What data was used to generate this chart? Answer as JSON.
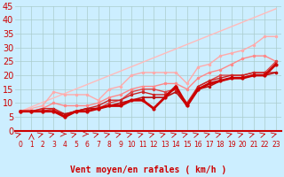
{
  "xlabel": "Vent moyen/en rafales ( km/h )",
  "bg_color": "#cceeff",
  "grid_color": "#aacccc",
  "xlim": [
    -0.5,
    23.5
  ],
  "ylim": [
    0,
    45
  ],
  "yticks": [
    0,
    5,
    10,
    15,
    20,
    25,
    30,
    35,
    40,
    45
  ],
  "xticks": [
    0,
    1,
    2,
    3,
    4,
    5,
    6,
    7,
    8,
    9,
    10,
    11,
    12,
    13,
    14,
    15,
    16,
    17,
    18,
    19,
    20,
    21,
    22,
    23
  ],
  "series": [
    {
      "x": [
        0,
        23
      ],
      "y": [
        7,
        44
      ],
      "color": "#ffbbbb",
      "lw": 1.0,
      "marker": null,
      "ms": 0
    },
    {
      "x": [
        0,
        1,
        2,
        3,
        4,
        5,
        6,
        7,
        8,
        9,
        10,
        11,
        12,
        13,
        14,
        15,
        16,
        17,
        18,
        19,
        20,
        21,
        22,
        23
      ],
      "y": [
        7,
        8,
        9,
        14,
        13,
        13,
        13,
        11,
        15,
        16,
        20,
        21,
        21,
        21,
        21,
        17,
        23,
        24,
        27,
        28,
        29,
        31,
        34,
        34
      ],
      "color": "#ffaaaa",
      "lw": 1.0,
      "marker": "o",
      "ms": 2.5
    },
    {
      "x": [
        0,
        1,
        2,
        3,
        4,
        5,
        6,
        7,
        8,
        9,
        10,
        11,
        12,
        13,
        14,
        15,
        16,
        17,
        18,
        19,
        20,
        21,
        22,
        23
      ],
      "y": [
        7,
        7,
        8,
        10,
        9,
        9,
        9,
        10,
        12,
        13,
        15,
        16,
        16,
        17,
        17,
        15,
        19,
        21,
        22,
        24,
        26,
        27,
        27,
        25
      ],
      "color": "#ff8888",
      "lw": 1.0,
      "marker": "o",
      "ms": 2.5
    },
    {
      "x": [
        0,
        1,
        2,
        3,
        4,
        5,
        6,
        7,
        8,
        9,
        10,
        11,
        12,
        13,
        14,
        15,
        16,
        17,
        18,
        19,
        20,
        21,
        22,
        23
      ],
      "y": [
        7,
        7,
        7,
        8,
        5,
        7,
        8,
        8,
        10,
        11,
        14,
        15,
        15,
        14,
        15,
        9,
        16,
        18,
        20,
        20,
        20,
        21,
        21,
        25
      ],
      "color": "#dd4444",
      "lw": 1.0,
      "marker": "o",
      "ms": 2.5
    },
    {
      "x": [
        0,
        1,
        2,
        3,
        4,
        5,
        6,
        7,
        8,
        9,
        10,
        11,
        12,
        13,
        14,
        15,
        16,
        17,
        18,
        19,
        20,
        21,
        22,
        23
      ],
      "y": [
        7,
        7,
        8,
        8,
        6,
        7,
        8,
        9,
        11,
        11,
        13,
        14,
        13,
        13,
        15,
        10,
        16,
        18,
        19,
        20,
        20,
        21,
        21,
        21
      ],
      "color": "#cc2222",
      "lw": 1.0,
      "marker": "o",
      "ms": 2.5
    },
    {
      "x": [
        0,
        1,
        2,
        3,
        4,
        5,
        6,
        7,
        8,
        9,
        10,
        11,
        12,
        13,
        14,
        15,
        16,
        17,
        18,
        19,
        20,
        21,
        22,
        23
      ],
      "y": [
        7,
        7,
        7,
        7,
        6,
        7,
        8,
        8,
        9,
        10,
        11,
        12,
        12,
        12,
        14,
        9,
        15,
        16,
        18,
        19,
        19,
        20,
        20,
        21
      ],
      "color": "#bb1111",
      "lw": 1.2,
      "marker": "o",
      "ms": 2.5
    },
    {
      "x": [
        0,
        1,
        2,
        3,
        4,
        5,
        6,
        7,
        8,
        9,
        10,
        11,
        12,
        13,
        14,
        15,
        16,
        17,
        18,
        19,
        20,
        21,
        22,
        23
      ],
      "y": [
        7,
        7,
        7,
        7,
        5,
        7,
        7,
        8,
        9,
        9,
        11,
        11,
        8,
        12,
        16,
        9,
        15,
        17,
        18,
        19,
        19,
        20,
        20,
        24
      ],
      "color": "#cc0000",
      "lw": 2.0,
      "marker": "o",
      "ms": 3.0
    }
  ],
  "xlabel_color": "#cc0000",
  "xlabel_fontsize": 7,
  "tick_color": "#cc0000",
  "ytick_fontsize": 7,
  "xtick_fontsize": 5.5
}
